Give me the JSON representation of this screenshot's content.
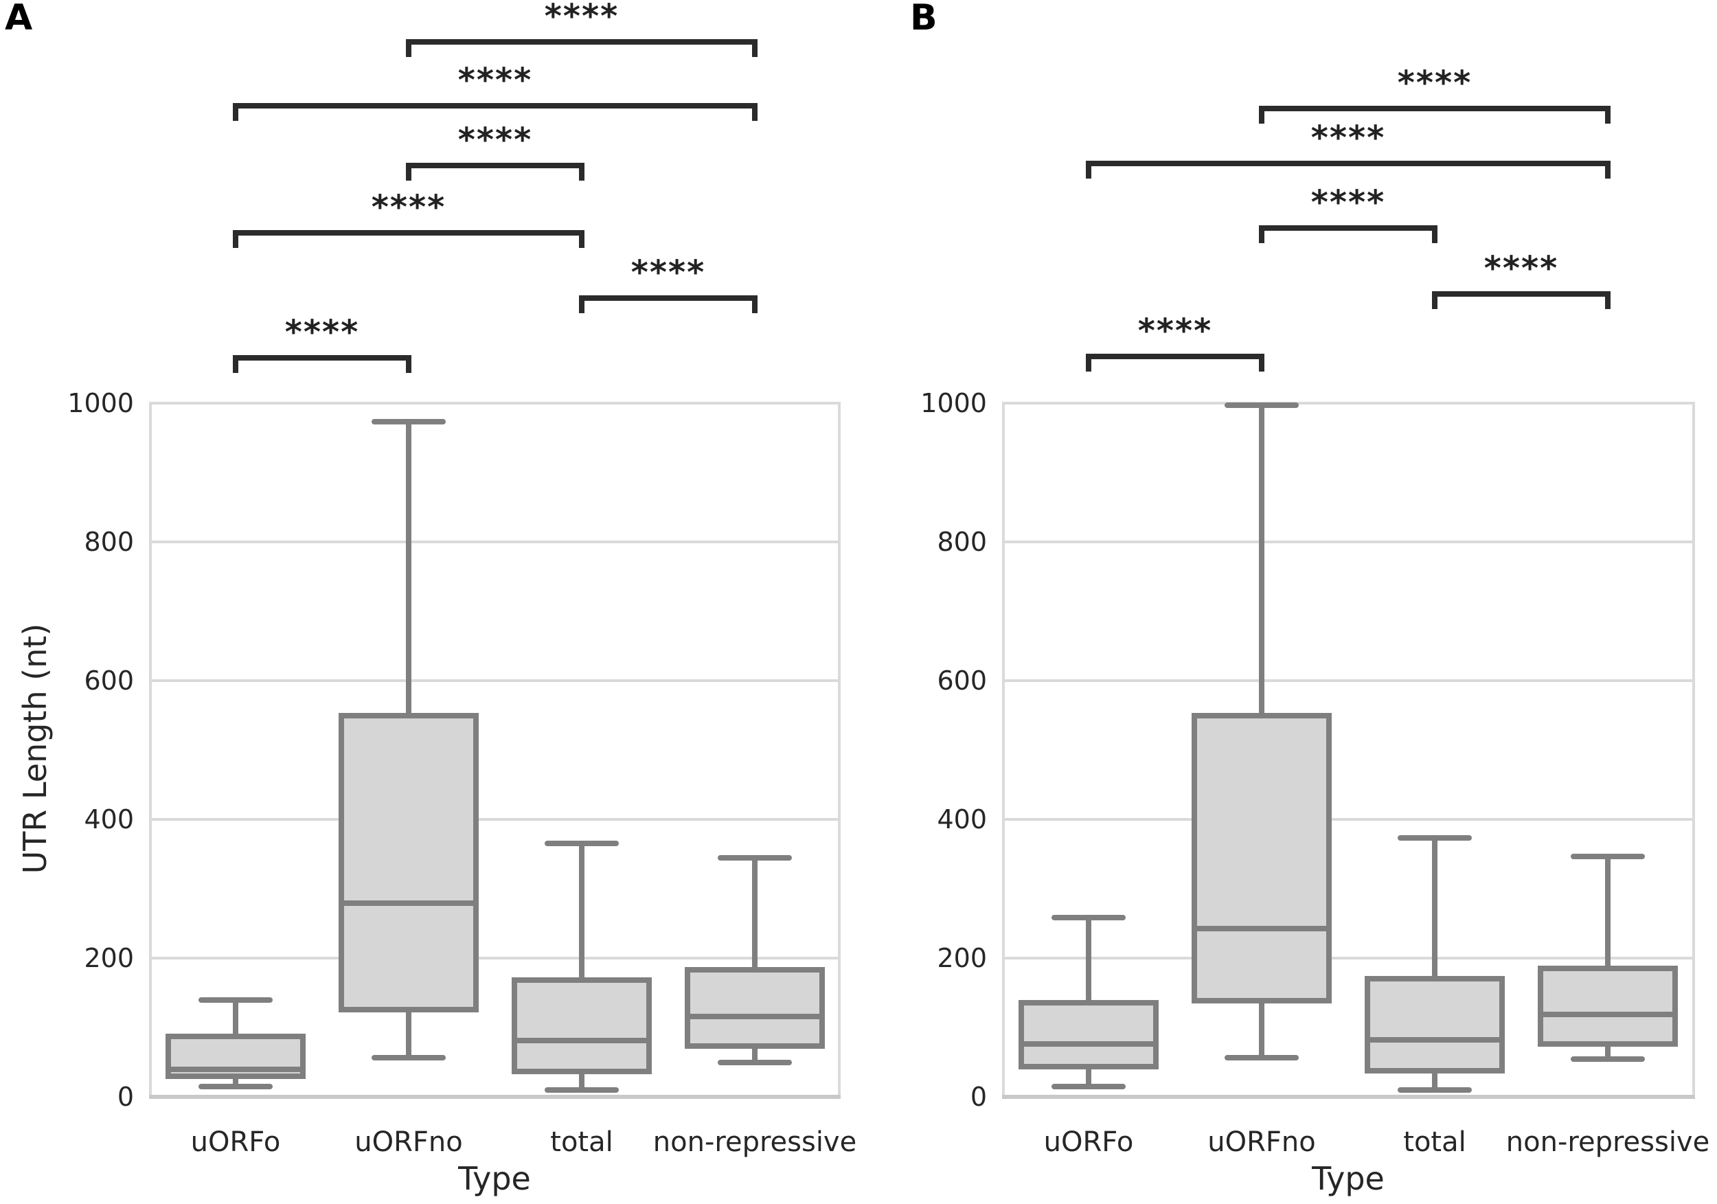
{
  "figure_title": "",
  "colors": {
    "background": "#ffffff",
    "box_fill": "#d6d6d6",
    "box_stroke": "#7f7f7f",
    "whisker": "#7f7f7f",
    "gridline": "#dadada",
    "axis_line": "#c9c9c9",
    "bracket": "#2b2b2b",
    "text": "#262626",
    "panel_letter": "#000000"
  },
  "chart_data": [
    {
      "panel_label": "A",
      "type": "box",
      "xlabel": "Type",
      "ylabel": "UTR Length (nt)",
      "ylim": [
        0,
        1000
      ],
      "yticks": [
        0,
        200,
        400,
        600,
        800,
        1000
      ],
      "grid": "horizontal",
      "categories": [
        "uORFo",
        "uORFno",
        "total",
        "non-repressive"
      ],
      "boxes": [
        {
          "category": "uORFo",
          "whislo": 15,
          "q1": 30,
          "med": 40,
          "q3": 87,
          "whishi": 140
        },
        {
          "category": "uORFno",
          "whislo": 56,
          "q1": 126,
          "med": 279,
          "q3": 550,
          "whishi": 973
        },
        {
          "category": "total",
          "whislo": 10,
          "q1": 37,
          "med": 81,
          "q3": 168,
          "whishi": 365
        },
        {
          "category": "non-repressive",
          "whislo": 50,
          "q1": 73,
          "med": 116,
          "q3": 183,
          "whishi": 345
        }
      ],
      "significance_brackets": [
        {
          "between": [
            "uORFno",
            "non-repressive"
          ],
          "label": "****"
        },
        {
          "between": [
            "uORFo",
            "non-repressive"
          ],
          "label": "****"
        },
        {
          "between": [
            "uORFno",
            "total"
          ],
          "label": "****"
        },
        {
          "between": [
            "uORFo",
            "total"
          ],
          "label": "****"
        },
        {
          "between": [
            "total",
            "non-repressive"
          ],
          "label": "****"
        },
        {
          "between": [
            "uORFo",
            "uORFno"
          ],
          "label": "****"
        }
      ]
    },
    {
      "panel_label": "B",
      "type": "box",
      "xlabel": "Type",
      "ylabel": "",
      "ylim": [
        0,
        1000
      ],
      "yticks": [
        0,
        200,
        400,
        600,
        800,
        1000
      ],
      "grid": "horizontal",
      "categories": [
        "uORFo",
        "uORFno",
        "total",
        "non-repressive"
      ],
      "boxes": [
        {
          "category": "uORFo",
          "whislo": 15,
          "q1": 44,
          "med": 76,
          "q3": 136,
          "whishi": 258
        },
        {
          "category": "uORFno",
          "whislo": 56,
          "q1": 139,
          "med": 243,
          "q3": 550,
          "whishi": 997
        },
        {
          "category": "total",
          "whislo": 10,
          "q1": 38,
          "med": 82,
          "q3": 170,
          "whishi": 373
        },
        {
          "category": "non-repressive",
          "whislo": 54,
          "q1": 76,
          "med": 119,
          "q3": 185,
          "whishi": 347
        }
      ],
      "significance_brackets": [
        {
          "between": [
            "uORFno",
            "non-repressive"
          ],
          "label": "****"
        },
        {
          "between": [
            "uORFo",
            "non-repressive"
          ],
          "label": "****"
        },
        {
          "between": [
            "uORFno",
            "total"
          ],
          "label": "****"
        },
        {
          "between": [
            "total",
            "non-repressive"
          ],
          "label": "****"
        },
        {
          "between": [
            "uORFo",
            "uORFno"
          ],
          "label": "****"
        }
      ]
    }
  ]
}
